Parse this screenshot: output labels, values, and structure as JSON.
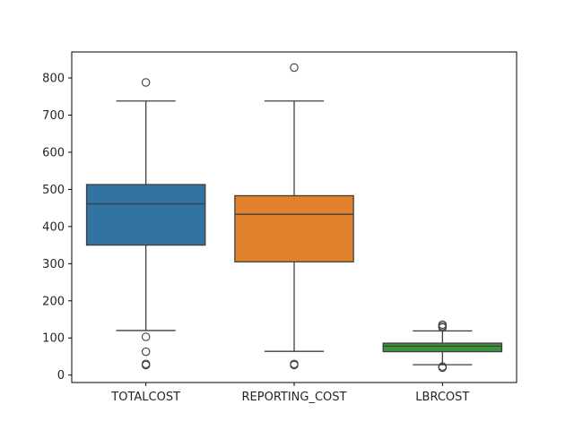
{
  "chart_data": {
    "type": "box",
    "title": "",
    "xlabel": "",
    "ylabel": "",
    "categories": [
      "TOTALCOST",
      "REPORTING_COST",
      "LBRCOST"
    ],
    "ylim": [
      -20,
      870
    ],
    "yticks": [
      0,
      100,
      200,
      300,
      400,
      500,
      600,
      700,
      800
    ],
    "grid": false,
    "legend": "none",
    "boxes": [
      {
        "name": "TOTALCOST",
        "color": "#3274a1",
        "whisker_low": 120,
        "q1": 350,
        "median": 461,
        "q3": 513,
        "whisker_high": 738,
        "outliers": [
          788,
          103,
          63,
          30,
          27
        ]
      },
      {
        "name": "REPORTING_COST",
        "color": "#e1812c",
        "whisker_low": 64,
        "q1": 305,
        "median": 433,
        "q3": 483,
        "whisker_high": 738,
        "outliers": [
          828,
          30,
          27
        ]
      },
      {
        "name": "LBRCOST",
        "color": "#3a923a",
        "whisker_low": 28,
        "q1": 63,
        "median": 78,
        "q3": 86,
        "whisker_high": 119,
        "outliers": [
          136,
          132,
          128,
          23,
          20
        ]
      }
    ]
  }
}
